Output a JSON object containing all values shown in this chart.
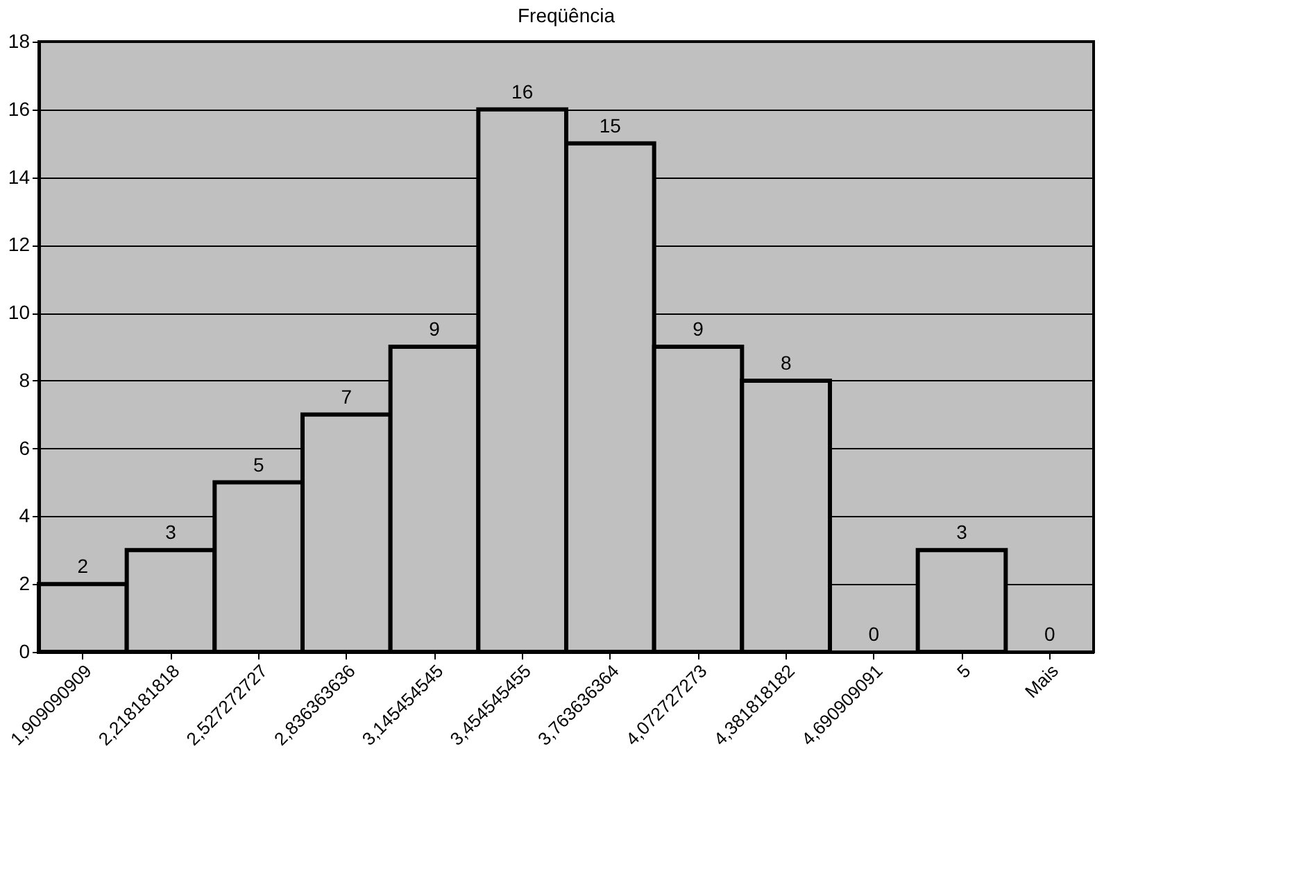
{
  "chart_data": {
    "type": "bar",
    "title": "Freqüência",
    "categories": [
      "1,909090909",
      "2,218181818",
      "2,527272727",
      "2,836363636",
      "3,145454545",
      "3,454545455",
      "3,763636364",
      "4,072727273",
      "4,381818182",
      "4,690909091",
      "5",
      "Mais"
    ],
    "values": [
      2,
      3,
      5,
      7,
      9,
      16,
      15,
      9,
      8,
      0,
      3,
      0
    ],
    "color": "#c0c0c0",
    "ylim": [
      0,
      18
    ],
    "yticks": [
      0,
      2,
      4,
      6,
      8,
      10,
      12,
      14,
      16,
      18
    ],
    "grid": "y",
    "data_labels": true
  }
}
